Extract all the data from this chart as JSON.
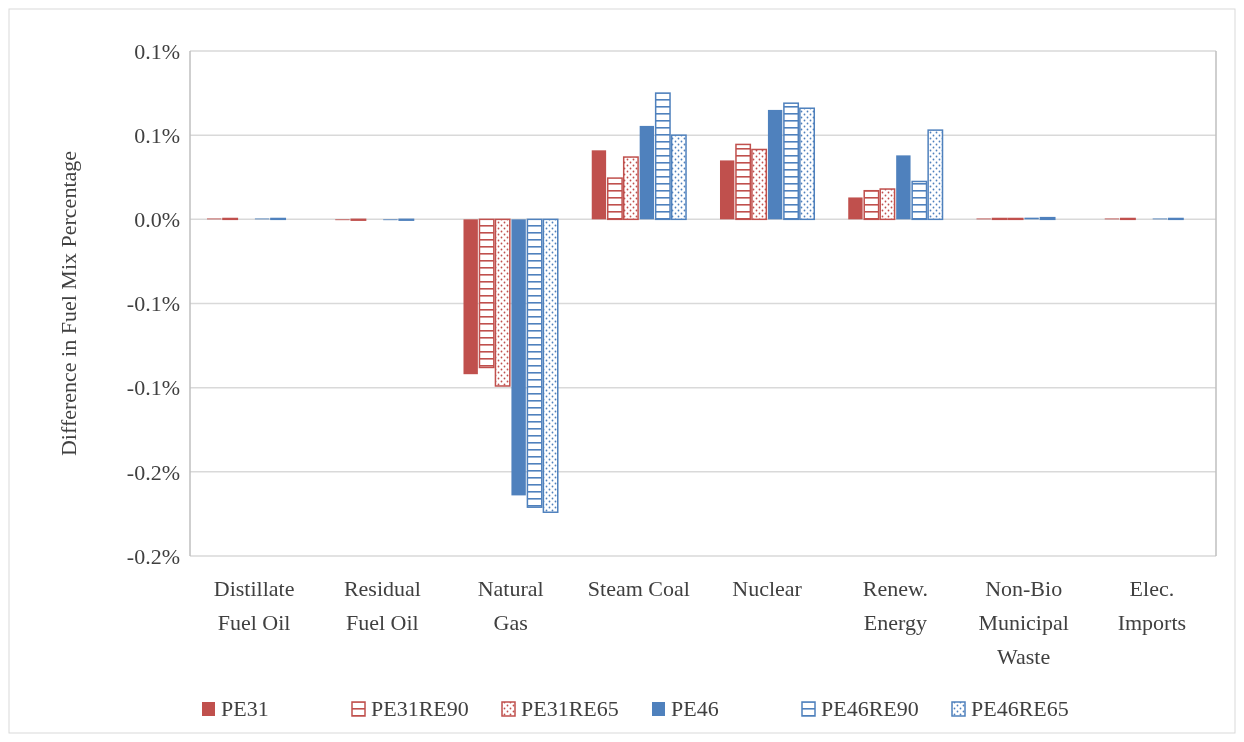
{
  "chart_data": {
    "type": "bar",
    "ylabel": "Difference in Fuel Mix Percentage",
    "categories": [
      "Distillate Fuel Oil",
      "Residual Fuel Oil",
      "Natural Gas",
      "Steam Coal",
      "Nuclear",
      "Renew. Energy",
      "Non-Bio Municipal Waste",
      "Elec. Imports"
    ],
    "series": [
      {
        "name": "PE31",
        "color": "#c0504d",
        "values": [
          0.0005,
          -0.0005,
          -0.092,
          0.041,
          0.035,
          0.013,
          0.0005,
          0.0005
        ]
      },
      {
        "name": "PE31RE90",
        "color": "#c0504d",
        "values": [
          0.0005,
          -0.0005,
          -0.088,
          0.0245,
          0.0445,
          0.017,
          0.0005,
          0.0005
        ]
      },
      {
        "name": "PE31RE65",
        "color": "#c0504d",
        "values": [
          0,
          0,
          -0.099,
          0.037,
          0.0415,
          0.018,
          0.0005,
          0
        ]
      },
      {
        "name": "PE46",
        "color": "#4f81bd",
        "values": [
          0.0005,
          -0.0005,
          -0.164,
          0.0555,
          0.065,
          0.038,
          0.001,
          0.0005
        ]
      },
      {
        "name": "PE46RE90",
        "color": "#4f81bd",
        "values": [
          0.0005,
          -0.0005,
          -0.171,
          0.075,
          0.069,
          0.0225,
          0.001,
          0.0005
        ]
      },
      {
        "name": "PE46RE65",
        "color": "#4f81bd",
        "values": [
          0,
          0,
          -0.174,
          0.05,
          0.066,
          0.053,
          0,
          0
        ]
      }
    ],
    "ylim": [
      -0.2,
      0.1
    ],
    "yticks": [
      {
        "value": 0.1,
        "label": "0.1%"
      },
      {
        "value": 0.05,
        "label": "0.1%"
      },
      {
        "value": 0,
        "label": "0.0%"
      },
      {
        "value": -0.05,
        "label": "-0.1%"
      },
      {
        "value": -0.1,
        "label": "-0.1%"
      },
      {
        "value": -0.15,
        "label": "-0.2%"
      },
      {
        "value": -0.2,
        "label": "-0.2%"
      }
    ],
    "grid": "y",
    "legend": "bottom"
  }
}
